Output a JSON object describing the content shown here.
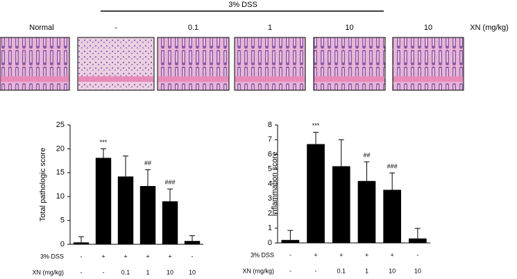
{
  "figure": {
    "dss_label": "3% DSS",
    "image_labels": [
      "Normal",
      "-",
      "0.1",
      "1",
      "10",
      "10"
    ],
    "xn_label": "XN (mg/kg)"
  },
  "chart_data": [
    {
      "type": "bar",
      "y_label": "Total pathologic score",
      "color": "#000000",
      "values": [
        0.4,
        18.1,
        14.2,
        12.2,
        9.0,
        0.7
      ],
      "errors": [
        1.2,
        1.9,
        4.3,
        3.4,
        2.6,
        1.1
      ],
      "annotations": [
        null,
        "***",
        null,
        "##",
        "###",
        null
      ],
      "rows": [
        {
          "label": "3% DSS",
          "values": [
            "-",
            "+",
            "+",
            "+",
            "+",
            "-"
          ]
        },
        {
          "label": "XN (mg/kg)",
          "values": [
            "-",
            "-",
            "0.1",
            "1",
            "10",
            "10"
          ]
        }
      ],
      "ylim": [
        0,
        25
      ],
      "yticks": [
        0,
        5,
        10,
        15,
        20,
        25
      ]
    },
    {
      "type": "bar",
      "y_label": "Inflammation score",
      "color": "#000000",
      "values": [
        0.2,
        6.7,
        5.2,
        4.2,
        3.6,
        0.3
      ],
      "errors": [
        0.65,
        0.8,
        1.8,
        1.3,
        1.15,
        0.68
      ],
      "annotations": [
        null,
        "***",
        null,
        "##",
        "###",
        null
      ],
      "rows": [
        {
          "label": "3% DSS",
          "values": [
            "-",
            "+",
            "+",
            "+",
            "+",
            "-"
          ]
        },
        {
          "label": "XN (mg/kg)",
          "values": [
            "-",
            "-",
            "0.1",
            "1",
            "10",
            "10"
          ]
        }
      ],
      "ylim": [
        0,
        8
      ],
      "yticks": [
        0,
        1,
        2,
        3,
        4,
        5,
        6,
        7,
        8
      ]
    }
  ]
}
